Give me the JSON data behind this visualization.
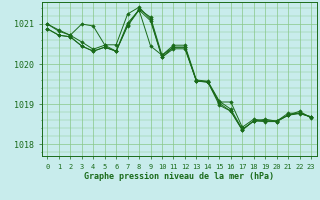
{
  "background_color": "#c8ecec",
  "plot_bg_color": "#c8ecec",
  "grid_color": "#88c888",
  "line_color": "#1a6b1a",
  "marker_color": "#1a6b1a",
  "title": "Graphe pression niveau de la mer (hPa)",
  "xlim": [
    -0.5,
    23.5
  ],
  "ylim": [
    1017.7,
    1021.55
  ],
  "yticks": [
    1018,
    1019,
    1020,
    1021
  ],
  "xticks": [
    0,
    1,
    2,
    3,
    4,
    5,
    6,
    7,
    8,
    9,
    10,
    11,
    12,
    13,
    14,
    15,
    16,
    17,
    18,
    19,
    20,
    21,
    22,
    23
  ],
  "series": [
    [
      1021.0,
      1020.82,
      1020.72,
      1021.0,
      1020.95,
      1020.48,
      1020.48,
      1021.25,
      1021.42,
      1021.12,
      1020.17,
      1020.38,
      1020.38,
      1019.58,
      1019.55,
      1019.05,
      1019.05,
      1018.42,
      1018.62,
      1018.58,
      1018.58,
      1018.72,
      1018.78,
      1018.68
    ],
    [
      1020.88,
      1020.72,
      1020.68,
      1020.45,
      1020.32,
      1020.42,
      1020.32,
      1020.95,
      1021.35,
      1020.45,
      1020.22,
      1020.42,
      1020.42,
      1019.57,
      1019.55,
      1019.02,
      1018.82,
      1018.35,
      1018.58,
      1018.58,
      1018.56,
      1018.72,
      1018.76,
      1018.68
    ],
    [
      1020.88,
      1020.72,
      1020.68,
      1020.45,
      1020.32,
      1020.42,
      1020.32,
      1021.02,
      1021.35,
      1021.08,
      1020.17,
      1020.42,
      1020.42,
      1019.57,
      1019.55,
      1018.97,
      1018.82,
      1018.35,
      1018.58,
      1018.56,
      1018.56,
      1018.72,
      1018.82,
      1018.65
    ],
    [
      1021.0,
      1020.85,
      1020.72,
      1020.55,
      1020.37,
      1020.47,
      1020.32,
      1020.97,
      1021.37,
      1021.17,
      1020.22,
      1020.47,
      1020.47,
      1019.6,
      1019.57,
      1019.07,
      1018.87,
      1018.37,
      1018.57,
      1018.62,
      1018.57,
      1018.77,
      1018.77,
      1018.67
    ]
  ]
}
